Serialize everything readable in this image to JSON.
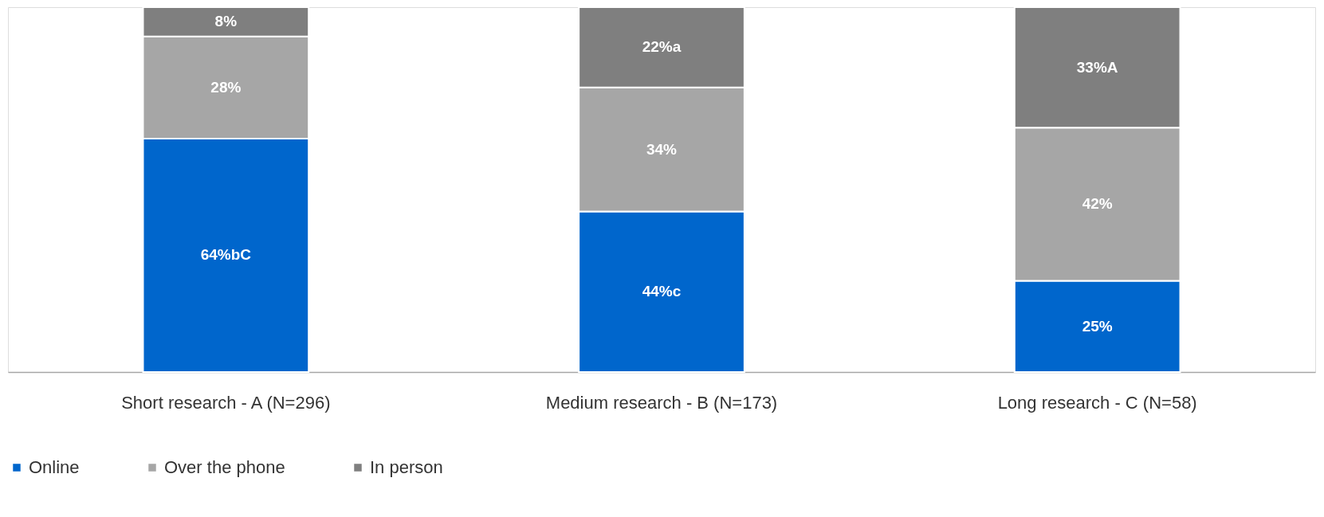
{
  "chart_data": {
    "type": "bar",
    "stacked": true,
    "legend": "bottom",
    "categories": [
      "Short research - A (N=296)",
      "Medium research - B (N=173)",
      "Long research - C (N=58)"
    ],
    "series": [
      {
        "name": "Online",
        "color": "#0066cc",
        "values": [
          64,
          44,
          25
        ],
        "value_labels": [
          "64%bC",
          "44%c",
          "25%"
        ]
      },
      {
        "name": "Over the phone",
        "color": "#a6a6a6",
        "values": [
          28,
          34,
          42
        ],
        "value_labels": [
          "28%",
          "34%",
          "42%"
        ]
      },
      {
        "name": "In person",
        "color": "#7f7f7f",
        "values": [
          8,
          22,
          33
        ],
        "value_labels": [
          "8%",
          "22%a",
          "33%A"
        ]
      }
    ]
  }
}
